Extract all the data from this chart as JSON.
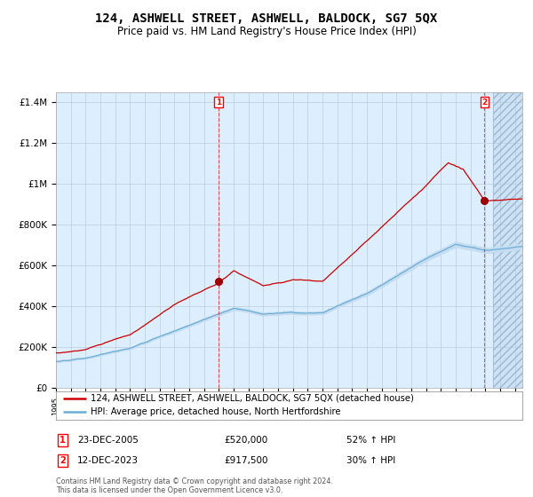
{
  "title": "124, ASHWELL STREET, ASHWELL, BALDOCK, SG7 5QX",
  "subtitle": "Price paid vs. HM Land Registry's House Price Index (HPI)",
  "ylabel_ticks": [
    "£0",
    "£200K",
    "£400K",
    "£600K",
    "£800K",
    "£1M",
    "£1.2M",
    "£1.4M"
  ],
  "ytick_values": [
    0,
    200000,
    400000,
    600000,
    800000,
    1000000,
    1200000,
    1400000
  ],
  "ylim": [
    0,
    1450000
  ],
  "xlim_start": 1995.0,
  "xlim_end": 2026.5,
  "sale1_x": 2005.97,
  "sale1_y": 520000,
  "sale2_x": 2023.95,
  "sale2_y": 917500,
  "sale1_label": "23-DEC-2005",
  "sale1_price": "£520,000",
  "sale1_hpi": "52% ↑ HPI",
  "sale2_label": "12-DEC-2023",
  "sale2_price": "£917,500",
  "sale2_hpi": "30% ↑ HPI",
  "legend_line1": "124, ASHWELL STREET, ASHWELL, BALDOCK, SG7 5QX (detached house)",
  "legend_line2": "HPI: Average price, detached house, North Hertfordshire",
  "footer": "Contains HM Land Registry data © Crown copyright and database right 2024.\nThis data is licensed under the Open Government Licence v3.0.",
  "red_color": "#cc0000",
  "blue_color": "#6baed6",
  "blue_fill_color": "#c6dcf0",
  "plot_bg_color": "#ddeeff",
  "grid_color": "#bbccdd",
  "future_start": 2024.5
}
